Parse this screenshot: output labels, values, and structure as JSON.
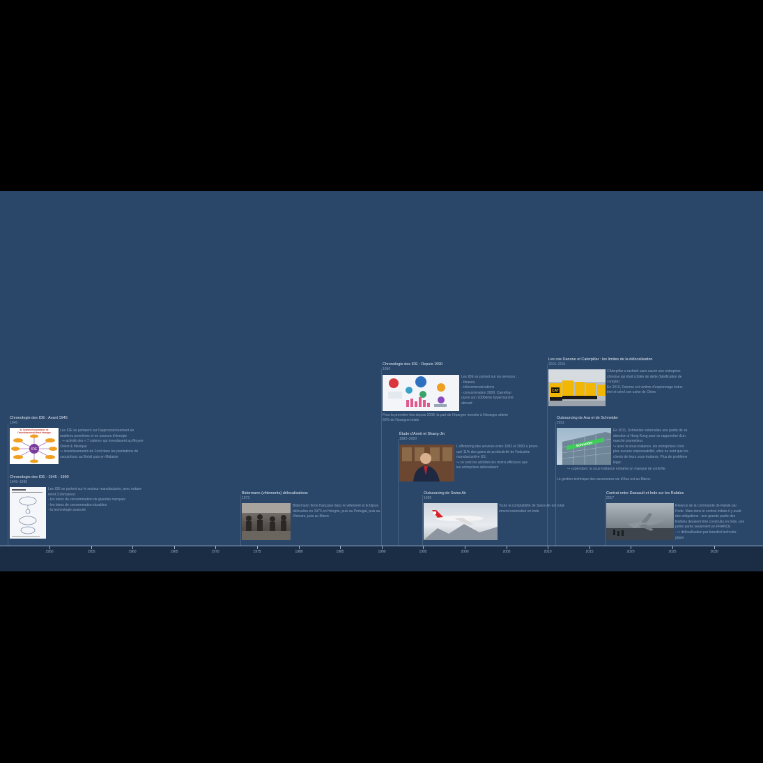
{
  "axis": {
    "ticks": [
      "1950",
      "1955",
      "1960",
      "1965",
      "1970",
      "1975",
      "1980",
      "1985",
      "1990",
      "1995",
      "2000",
      "2005",
      "2010",
      "2015",
      "2020",
      "2025",
      "2030"
    ]
  },
  "events": {
    "avant1945": {
      "title": "Chronologie des IDE : Avant 1945",
      "date": "1945",
      "lines": [
        "Les IDE se portaient sur l'approvisionnement en",
        "matières premières et en sources d'énergie",
        ". ↪ activité des « 7 sisters» qui investissent au Moyen-",
        "Orient & Mexique",
        "↪ investissements de Ford dans les plantations de",
        "caoutchouc au     Brésil puis en Malaisie"
      ],
      "image": {
        "title": "III- Grands Economistes de l'investissement direct étranger",
        "center": "IDE"
      }
    },
    "p1945_1990": {
      "title": "Chronologie des IDE : 1945 - 1990",
      "date": "1945–1990",
      "lines": [
        "Les IDE se portent sur le secteur manufacturier, avec notam-",
        "ment 3 domaines:",
        "- les biens de consommation de grandes marques",
        "- les biens de consommation durables",
        "- la technologie avancée"
      ]
    },
    "bidermann": {
      "title": "Bidermann (vêtements) délocalisations",
      "date": "1973",
      "lines": [
        "Bidermann firme française dans le vêtement et le bijoux",
        "délocalise en 1973 en Hongrie, puis au Portugal, puis au",
        "Vietnam, puis au Maroc"
      ]
    },
    "depuis1990": {
      "title": "Chronologie des IDE : Depuis 1990",
      "date": "1990",
      "lines": [
        "Les IDE se portent sur les services :",
        "-    finance,",
        "-    télécommunications",
        "-    consommation 2009, Carrefour",
        "ouvre son 1000ème hypermarché",
        "abroad"
      ],
      "note": [
        "Pour la première fois depuis 2008, la part de l'épargne investie à l'étranger atteint",
        "60% de l'épargne totale"
      ]
    },
    "armit": {
      "title": "Étude d'Armit et Shang-Jin",
      "date": "1992–2000",
      "lines": [
        "L'offshoring des services entre 1992 et 2000 a provo-",
        "qué 11% des gains de productivité de l'industrie",
        "manufacturière      US.",
        "↪ ce sont les activités les moins efficaces que",
        "les entreprises délocalisent"
      ]
    },
    "swissair": {
      "title": "Outsourcing de Swiss Air",
      "date": "1995",
      "lines": [
        "Toute la comptabilité de Swiss Air est total-",
        "ement externalisé en Inde"
      ]
    },
    "danone": {
      "title": "Les cas Danone et Caterpillar : les limites de la délocalisation",
      "date": "2010–2011",
      "lines": [
        "CAterpillar a racheté sans savoir une entreprise",
        "chinoise qui était criblée de dette (falsification de",
        "compte)",
        "",
        "En 2010, Danone est victime d'espionnage indus-",
        "triel et vérol son usine de Chine."
      ],
      "image": {
        "label": "CAT"
      }
    },
    "axa": {
      "title": "Outsourcing de Axa et de Schneider",
      "date": "2011",
      "lines": [
        "En 2011, Schneider externalise une partie de sa",
        "direction à Hong Kong pour se rapprocher d'un",
        "marché prometteur.",
        "↪ avec la sous-traitance, les entreprises n'ont",
        "plus aucune responsabilité, elles ne sont que les",
        "clients de leurs sous-traitants. Plus de problème",
        "légal.",
        "↪ cependant, la sous-traitance entraîne un manque de contrôle."
      ],
      "note": [
        "La gestion technique des assurances vie d'Axa est au Maroc."
      ],
      "image": {
        "label": "Schneider"
      }
    },
    "rafales": {
      "title": "Contrat entre Dassault et Inde sur les Rafales",
      "date": "2017",
      "lines": [
        "Relance de la commande de Rafale par",
        "l'Inde. Mais dans le contrat initiale il y avait",
        "des obligations : une grande partie des",
        "Rafales devaient être construits en Inde, une",
        "petite partie seulement en     FRANCE",
        ".        ↪ délocalisation par transfert technolo-",
        "gique"
      ]
    }
  }
}
